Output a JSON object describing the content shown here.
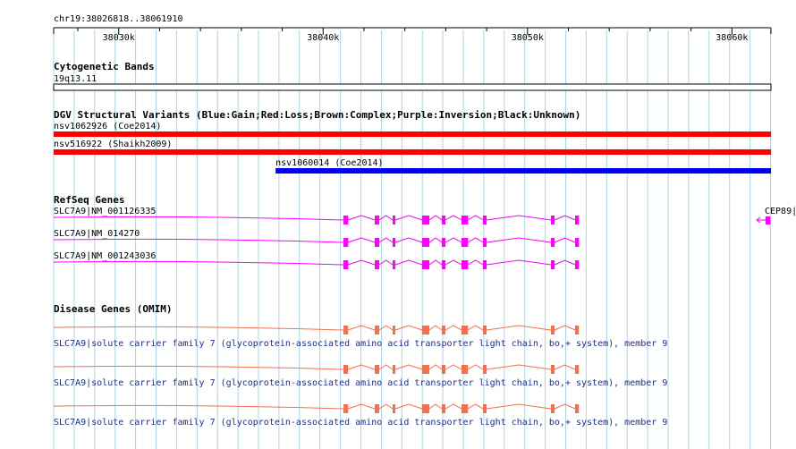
{
  "region": {
    "label": "chr19:38026818..38061910",
    "start": 38026818,
    "end": 38061910
  },
  "ruler": {
    "ticks": [
      {
        "pos": 38030000,
        "label": "38030k"
      },
      {
        "pos": 38040000,
        "label": "38040k"
      },
      {
        "pos": 38050000,
        "label": "38050k"
      },
      {
        "pos": 38060000,
        "label": "38060k"
      }
    ]
  },
  "grid_color": "#a9d6ea",
  "tracks": {
    "cytobands": {
      "title": "Cytogenetic Bands",
      "band": "19q13.11"
    },
    "dgv": {
      "title": "DGV Structural Variants (Blue:Gain;Red:Loss;Brown:Complex;Purple:Inversion;Black:Unknown)",
      "features": [
        {
          "label": "nsv1062926 (Coe2014)",
          "start": 38026818,
          "end": 38061910,
          "color": "#ff0000"
        },
        {
          "label": "nsv516922 (Shaikh2009)",
          "start": 38026818,
          "end": 38061910,
          "color": "#ff0000"
        },
        {
          "label": "nsv1060014 (Coe2014)",
          "start": 38037675,
          "end": 38061910,
          "color": "#0000ee"
        }
      ]
    },
    "refseq": {
      "title": "RefSeq Genes",
      "color": "#ff00ff",
      "transcripts": [
        {
          "label": "SLC7A9|NM_001126335"
        },
        {
          "label": "SLC7A9|NM_014270"
        },
        {
          "label": "SLC7A9|NM_001243036"
        }
      ],
      "neighbor": {
        "label": "CEP89|"
      }
    },
    "omim": {
      "title": "Disease Genes (OMIM)",
      "color": "#f07050",
      "entries": [
        {
          "label": "SLC7A9|solute carrier family 7 (glycoprotein-associated amino acid transporter light chain, bo,+ system), member 9"
        },
        {
          "label": "SLC7A9|solute carrier family 7 (glycoprotein-associated amino acid transporter light chain, bo,+ system), member 9"
        },
        {
          "label": "SLC7A9|solute carrier family 7 (glycoprotein-associated amino acid transporter light chain, bo,+ system), member 9"
        }
      ]
    }
  }
}
